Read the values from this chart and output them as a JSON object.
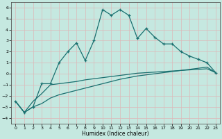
{
  "xlabel": "Humidex (Indice chaleur)",
  "xlim": [
    -0.5,
    23.5
  ],
  "ylim": [
    -4.5,
    6.5
  ],
  "xticks": [
    0,
    1,
    2,
    3,
    4,
    5,
    6,
    7,
    8,
    9,
    10,
    11,
    12,
    13,
    14,
    15,
    16,
    17,
    18,
    19,
    20,
    21,
    22,
    23
  ],
  "yticks": [
    -4,
    -3,
    -2,
    -1,
    0,
    1,
    2,
    3,
    4,
    5,
    6
  ],
  "background_color": "#c5e8e0",
  "grid_color": "#ddb8b8",
  "line_color": "#1a7070",
  "line1_x": [
    0,
    1,
    2,
    3,
    4,
    5,
    6,
    7,
    8,
    9,
    10,
    11,
    12,
    13,
    14,
    15,
    16,
    17,
    18,
    19,
    20,
    21,
    22,
    23
  ],
  "line1_y": [
    -2.5,
    -3.5,
    -3.0,
    -0.9,
    -0.9,
    1.0,
    2.0,
    2.8,
    1.2,
    3.0,
    5.8,
    5.3,
    5.8,
    5.3,
    3.2,
    4.1,
    3.3,
    2.7,
    2.7,
    2.0,
    1.6,
    1.3,
    1.0,
    0.1
  ],
  "line2_x": [
    0,
    1,
    2,
    3,
    4,
    5,
    6,
    7,
    8,
    9,
    10,
    11,
    12,
    13,
    14,
    15,
    16,
    17,
    18,
    19,
    20,
    21,
    22,
    23
  ],
  "line2_y": [
    -2.5,
    -3.5,
    -2.5,
    -1.8,
    -1.0,
    -0.9,
    -0.8,
    -0.7,
    -0.55,
    -0.45,
    -0.35,
    -0.25,
    -0.15,
    -0.05,
    0.05,
    0.1,
    0.15,
    0.2,
    0.25,
    0.3,
    0.35,
    0.4,
    0.45,
    0.1
  ],
  "line3_x": [
    0,
    1,
    2,
    3,
    4,
    5,
    6,
    7,
    8,
    9,
    10,
    11,
    12,
    13,
    14,
    15,
    16,
    17,
    18,
    19,
    20,
    21,
    22,
    23
  ],
  "line3_y": [
    -2.5,
    -3.5,
    -3.0,
    -2.7,
    -2.2,
    -1.9,
    -1.7,
    -1.5,
    -1.3,
    -1.1,
    -0.9,
    -0.7,
    -0.5,
    -0.35,
    -0.2,
    -0.1,
    0.0,
    0.1,
    0.2,
    0.3,
    0.4,
    0.5,
    0.6,
    0.1
  ]
}
